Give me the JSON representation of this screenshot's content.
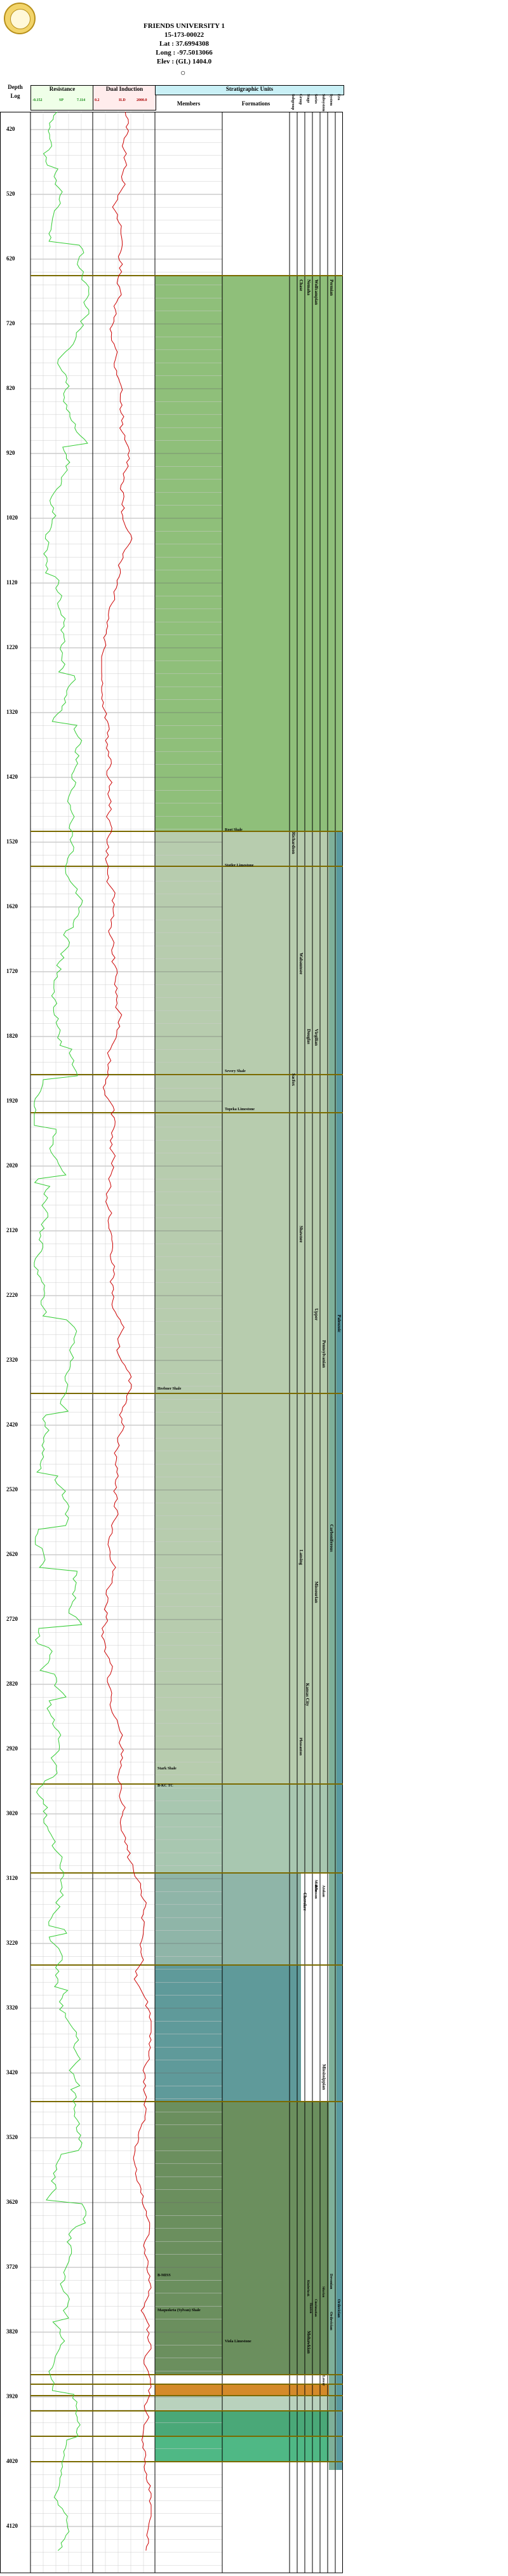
{
  "well": {
    "name": "FRIENDS UNIVERSITY 1",
    "api": "15-173-00022",
    "lat": "Lat : 37.6994308",
    "long": "Long : -97.5013066",
    "elev": "Elev : (GL) 1404.0"
  },
  "columns": {
    "depth": "Depth",
    "log": "Log",
    "resistance": "Resistance",
    "resistance_scale": [
      "-0.152",
      "SP",
      "7.114"
    ],
    "induction": "Dual Induction",
    "induction_scale": [
      "0.2",
      "ILD",
      "2000.0"
    ],
    "strat_title": "Stratigraphic Units",
    "members": "Members",
    "formations": "Formations",
    "right_headers": [
      "Subgroup",
      "Group",
      "Stage",
      "Series",
      "Subsystem",
      "System",
      "Era"
    ]
  },
  "depth_ticks": [
    "420",
    "520",
    "620",
    "720",
    "820",
    "920",
    "1020",
    "1120",
    "1220",
    "1320",
    "1420",
    "1520",
    "1620",
    "1720",
    "1820",
    "1920",
    "2020",
    "2120",
    "2220",
    "2320",
    "2420",
    "2520",
    "2620",
    "2720",
    "2820",
    "2920",
    "3020",
    "3120",
    "3220",
    "3320",
    "3420",
    "3520",
    "3620",
    "3720",
    "3820",
    "3920",
    "4020",
    "4120"
  ],
  "members": [
    "Root Shale",
    "Stotler Limestone",
    "Severy Shale",
    "Topeka Limestone",
    "Heebner Shale",
    "Stark Shale",
    "B-KC TC",
    "B-MISS",
    "Maquoketa (Sylvan) Shale",
    "Viola Limestone"
  ],
  "formations": [],
  "units": {
    "group": [
      "Chase",
      "Wabaunsee",
      "Shawnee",
      "Lansing",
      "Kansas City",
      "Cherokee",
      "Kinderhook",
      "Hunton"
    ],
    "subgroup": [
      "Richardson",
      "Nemaha",
      "Sacfox",
      "Douglas",
      "Pleasanton",
      "Bronson"
    ],
    "stage": [
      "Wolfcampian",
      "Virgilian",
      "Missourian",
      "Atokan",
      "Cincinnatian",
      "Mohawkian"
    ],
    "series": [
      "Upper",
      "Middle",
      "Lower"
    ],
    "subsystem": [
      "Pennsylvanian",
      "Mississippian",
      "Devonian",
      "Silurian",
      "Ordovician"
    ],
    "system": [
      "Permian",
      "Carboniferous",
      "Ordovician"
    ],
    "era": [
      "Paleozoic"
    ]
  },
  "colors": {
    "resistance_curve": "#33cc33",
    "induction_curve": "#cc0000",
    "boundary_line": "#7a6a00",
    "header_bg": "#c9f0f6",
    "permian": "#8fbf7a",
    "penn": "#b7ccae",
    "kc": "#a8c7b0",
    "cherokee": "#5f9a9a",
    "miss": "#6b8f5e",
    "devonian": "#d48a2a",
    "ordovician": "#4aa878",
    "era": "#7fb09a"
  }
}
